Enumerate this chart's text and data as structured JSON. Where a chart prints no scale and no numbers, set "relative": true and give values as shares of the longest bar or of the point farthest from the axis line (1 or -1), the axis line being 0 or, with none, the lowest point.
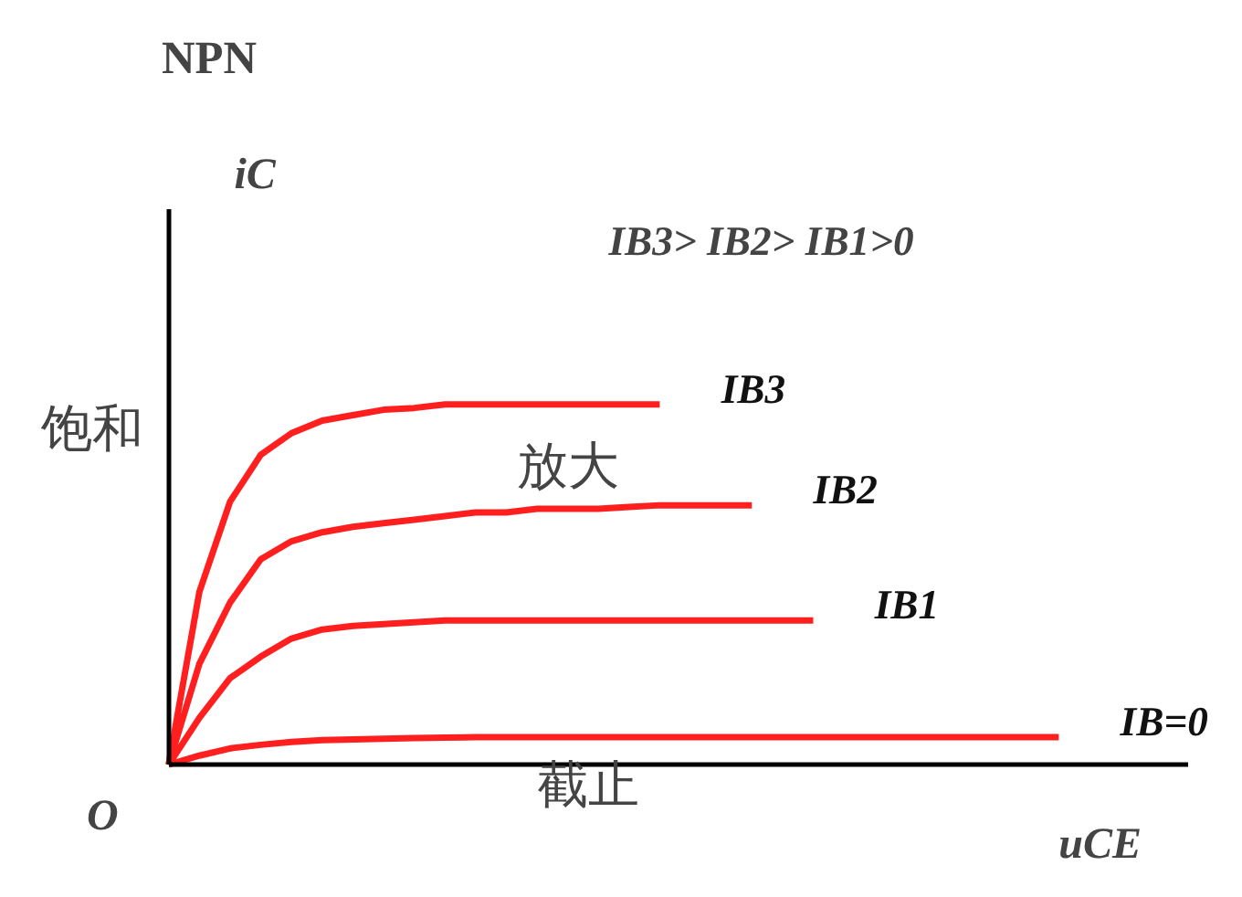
{
  "chart_data": {
    "type": "line",
    "relative": true,
    "title": "NPN",
    "xlabel": "uCE",
    "ylabel": "iC",
    "annotations": [
      "IB3> IB2> IB1>0",
      "饱和",
      "放大",
      "截止",
      "O"
    ],
    "categories": [
      null,
      null,
      null,
      null,
      null,
      null,
      null,
      null,
      null,
      null,
      null,
      null,
      null,
      null,
      null,
      null,
      null,
      null,
      null,
      null,
      null,
      null,
      null,
      null,
      null,
      null,
      null,
      null,
      null,
      null
    ],
    "series": [
      {
        "name": "IB3",
        "color": "#ff1f1f",
        "values": [
          0,
          0.48,
          0.73,
          0.86,
          0.92,
          0.955,
          0.97,
          0.985,
          0.99,
          1.0,
          1.0,
          1.0,
          1.0,
          1.0,
          1.0,
          1.0,
          1.0,
          null,
          null,
          null,
          null,
          null,
          null,
          null,
          null,
          null,
          null,
          null,
          null,
          null
        ]
      },
      {
        "name": "IB2",
        "color": "#ff1f1f",
        "values": [
          0,
          0.28,
          0.45,
          0.57,
          0.62,
          0.645,
          0.66,
          0.67,
          0.68,
          0.69,
          0.7,
          0.7,
          0.71,
          0.71,
          0.71,
          0.715,
          0.72,
          0.72,
          0.72,
          0.72,
          null,
          null,
          null,
          null,
          null,
          null,
          null,
          null,
          null,
          null
        ]
      },
      {
        "name": "IB1",
        "color": "#ff1f1f",
        "values": [
          0,
          0.13,
          0.24,
          0.3,
          0.35,
          0.375,
          0.385,
          0.39,
          0.395,
          0.4,
          0.4,
          0.4,
          0.4,
          0.4,
          0.4,
          0.4,
          0.4,
          0.4,
          0.4,
          0.4,
          0.4,
          0.4,
          null,
          null,
          null,
          null,
          null,
          null,
          null,
          null
        ]
      },
      {
        "name": "IB=0",
        "color": "#ff1f1f",
        "values": [
          0,
          0.025,
          0.045,
          0.055,
          0.063,
          0.068,
          0.07,
          0.072,
          0.074,
          0.075,
          0.076,
          0.076,
          0.076,
          0.076,
          0.076,
          0.076,
          0.076,
          0.076,
          0.076,
          0.076,
          0.076,
          0.076,
          0.076,
          0.076,
          0.076,
          0.076,
          0.076,
          0.076,
          0.076,
          0.076
        ]
      }
    ],
    "marker": "none",
    "line_style": "solid"
  }
}
